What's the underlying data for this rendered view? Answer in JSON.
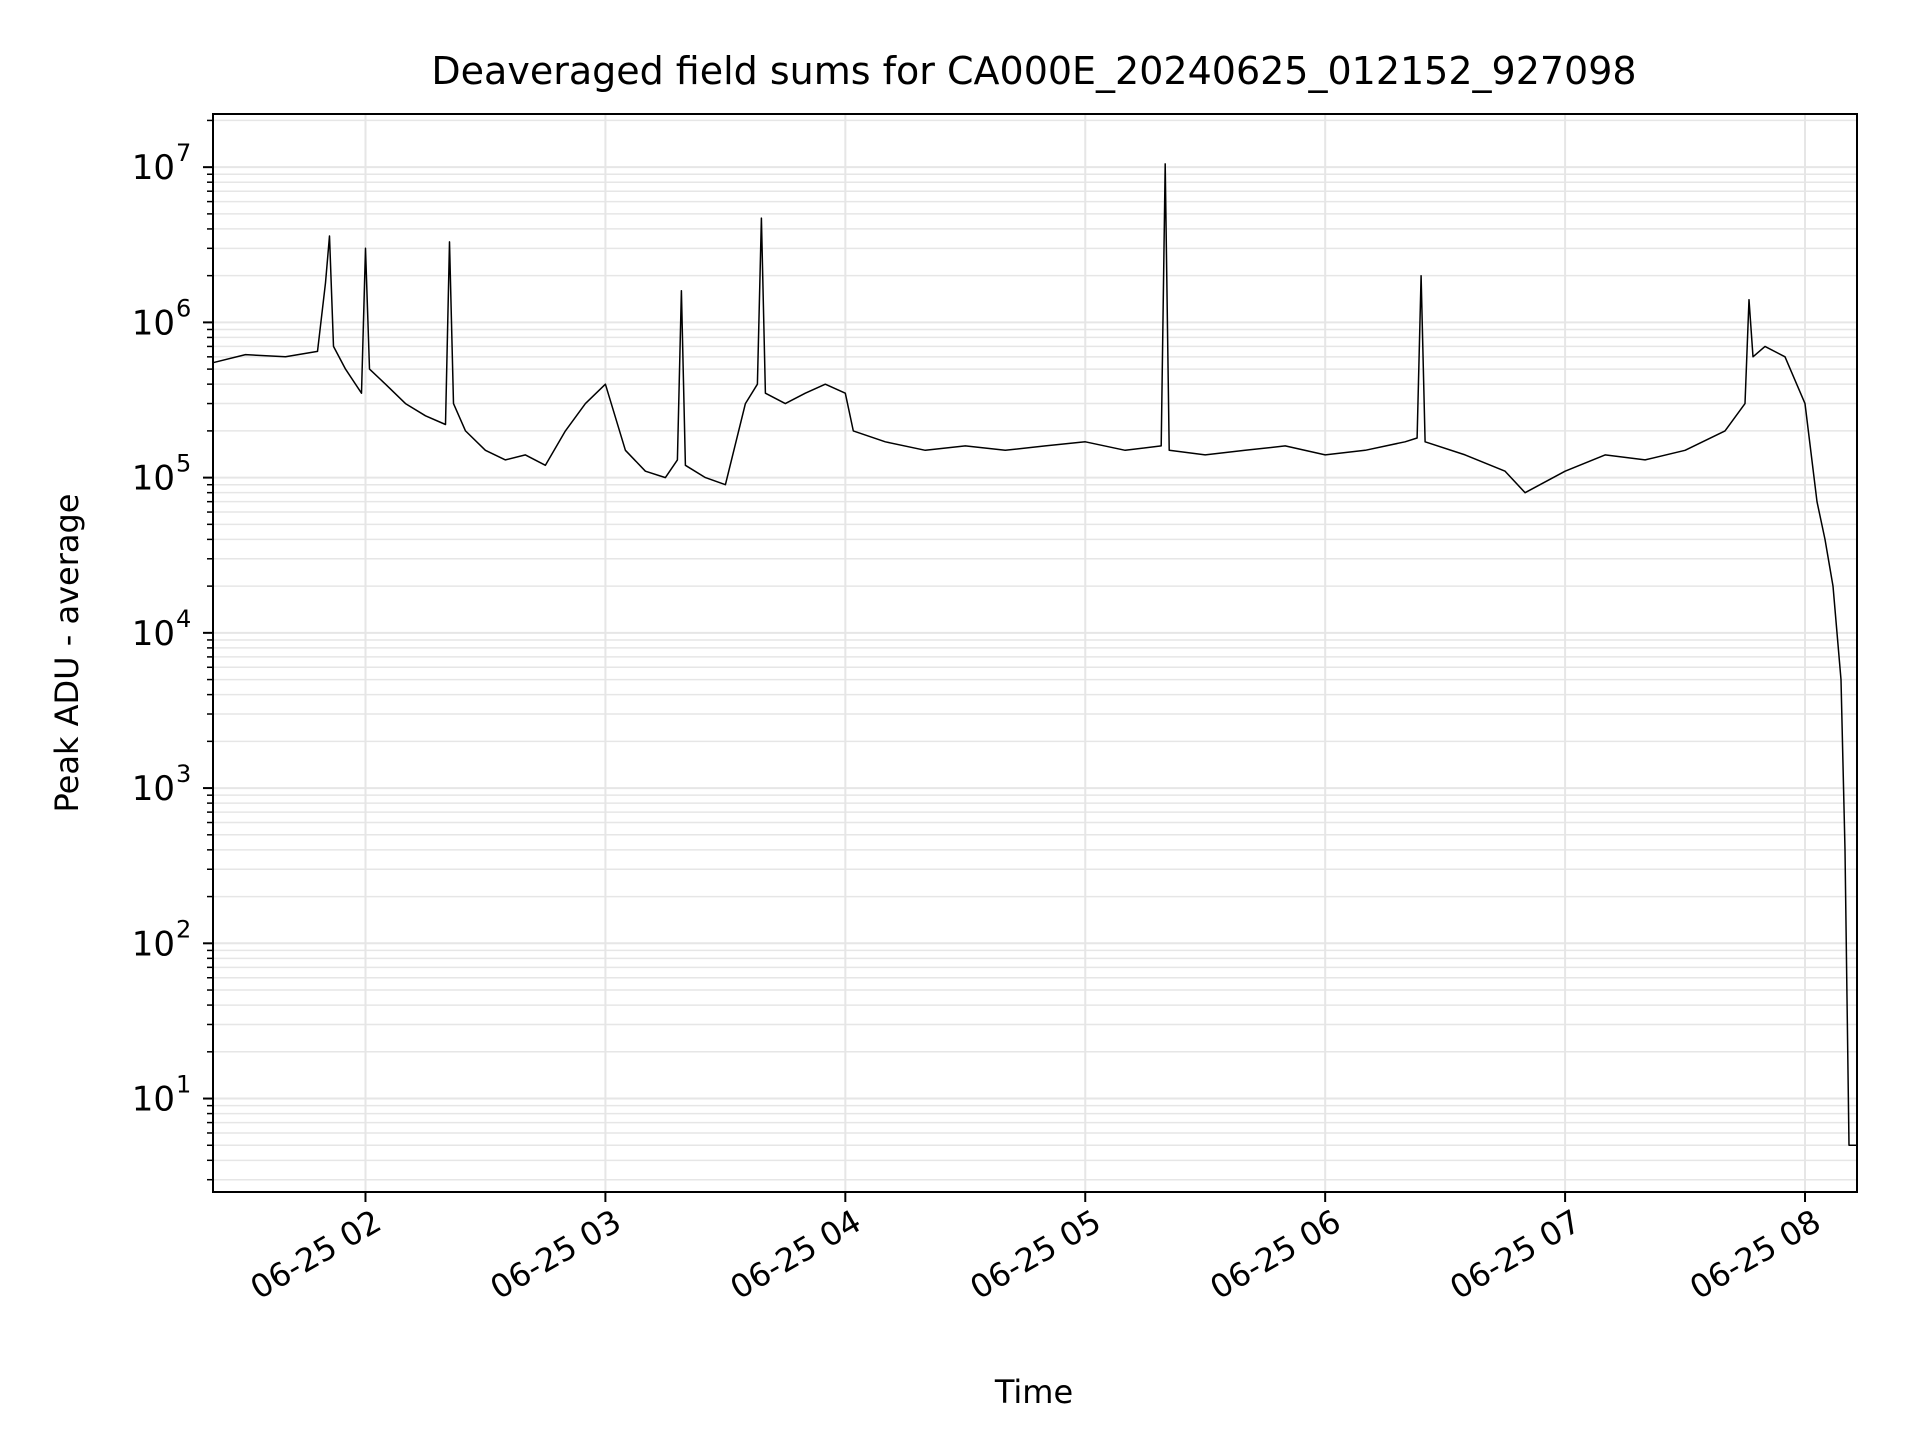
{
  "chart_data": {
    "type": "line",
    "title": "Deaveraged field sums for CA000E_20240625_012152_927098",
    "xlabel": "Time",
    "ylabel": "Peak ADU - average",
    "yscale": "log",
    "ylim": [
      2.5,
      22000000
    ],
    "xlim": [
      "2024-06-25 01:21:52",
      "2024-06-25 08:13:00"
    ],
    "grid": true,
    "line_color": "#000000",
    "grid_color": "#e6e6e6",
    "x_ticks": [
      {
        "t": "2024-06-25 02:00",
        "label": "06-25 02"
      },
      {
        "t": "2024-06-25 03:00",
        "label": "06-25 03"
      },
      {
        "t": "2024-06-25 04:00",
        "label": "06-25 04"
      },
      {
        "t": "2024-06-25 05:00",
        "label": "06-25 05"
      },
      {
        "t": "2024-06-25 06:00",
        "label": "06-25 06"
      },
      {
        "t": "2024-06-25 07:00",
        "label": "06-25 07"
      },
      {
        "t": "2024-06-25 08:00",
        "label": "06-25 08"
      }
    ],
    "y_ticks": [
      {
        "value": 10,
        "base": "10",
        "exp": "1"
      },
      {
        "value": 100,
        "base": "10",
        "exp": "2"
      },
      {
        "value": 1000,
        "base": "10",
        "exp": "3"
      },
      {
        "value": 10000,
        "base": "10",
        "exp": "4"
      },
      {
        "value": 100000,
        "base": "10",
        "exp": "5"
      },
      {
        "value": 1000000,
        "base": "10",
        "exp": "6"
      },
      {
        "value": 10000000,
        "base": "10",
        "exp": "7"
      }
    ],
    "series": [
      {
        "x": [
          "2024-06-25 01:21:52",
          "2024-06-25 01:30",
          "2024-06-25 01:40",
          "2024-06-25 01:48",
          "2024-06-25 01:50",
          "2024-06-25 01:51",
          "2024-06-25 01:52",
          "2024-06-25 01:55",
          "2024-06-25 01:59",
          "2024-06-25 02:00",
          "2024-06-25 02:01",
          "2024-06-25 02:05",
          "2024-06-25 02:10",
          "2024-06-25 02:15",
          "2024-06-25 02:20",
          "2024-06-25 02:21",
          "2024-06-25 02:22",
          "2024-06-25 02:25",
          "2024-06-25 02:30",
          "2024-06-25 02:35",
          "2024-06-25 02:40",
          "2024-06-25 02:45",
          "2024-06-25 02:50",
          "2024-06-25 02:55",
          "2024-06-25 03:00",
          "2024-06-25 03:05",
          "2024-06-25 03:10",
          "2024-06-25 03:15",
          "2024-06-25 03:18",
          "2024-06-25 03:19",
          "2024-06-25 03:20",
          "2024-06-25 03:25",
          "2024-06-25 03:30",
          "2024-06-25 03:35",
          "2024-06-25 03:38",
          "2024-06-25 03:39",
          "2024-06-25 03:40",
          "2024-06-25 03:45",
          "2024-06-25 03:50",
          "2024-06-25 03:55",
          "2024-06-25 04:00",
          "2024-06-25 04:02",
          "2024-06-25 04:10",
          "2024-06-25 04:20",
          "2024-06-25 04:30",
          "2024-06-25 04:40",
          "2024-06-25 04:50",
          "2024-06-25 05:00",
          "2024-06-25 05:10",
          "2024-06-25 05:19",
          "2024-06-25 05:20",
          "2024-06-25 05:21",
          "2024-06-25 05:30",
          "2024-06-25 05:40",
          "2024-06-25 05:50",
          "2024-06-25 06:00",
          "2024-06-25 06:10",
          "2024-06-25 06:20",
          "2024-06-25 06:23",
          "2024-06-25 06:24",
          "2024-06-25 06:25",
          "2024-06-25 06:35",
          "2024-06-25 06:45",
          "2024-06-25 06:50",
          "2024-06-25 07:00",
          "2024-06-25 07:10",
          "2024-06-25 07:20",
          "2024-06-25 07:30",
          "2024-06-25 07:40",
          "2024-06-25 07:45",
          "2024-06-25 07:46",
          "2024-06-25 07:47",
          "2024-06-25 07:50",
          "2024-06-25 07:55",
          "2024-06-25 08:00",
          "2024-06-25 08:03",
          "2024-06-25 08:05",
          "2024-06-25 08:07",
          "2024-06-25 08:09",
          "2024-06-25 08:10",
          "2024-06-25 08:11",
          "2024-06-25 08:12",
          "2024-06-25 08:13"
        ],
        "y": [
          550000,
          620000,
          600000,
          650000,
          1800000,
          3600000,
          700000,
          500000,
          350000,
          3000000,
          500000,
          400000,
          300000,
          250000,
          220000,
          3300000,
          300000,
          200000,
          150000,
          130000,
          140000,
          120000,
          200000,
          300000,
          400000,
          150000,
          110000,
          100000,
          130000,
          1600000,
          120000,
          100000,
          90000,
          300000,
          400000,
          4700000,
          350000,
          300000,
          350000,
          400000,
          350000,
          200000,
          170000,
          150000,
          160000,
          150000,
          160000,
          170000,
          150000,
          160000,
          10500000,
          150000,
          140000,
          150000,
          160000,
          140000,
          150000,
          170000,
          180000,
          2000000,
          170000,
          140000,
          110000,
          80000,
          110000,
          140000,
          130000,
          150000,
          200000,
          300000,
          1400000,
          600000,
          700000,
          600000,
          300000,
          70000,
          40000,
          20000,
          5000,
          400,
          5,
          5,
          5
        ]
      }
    ]
  }
}
